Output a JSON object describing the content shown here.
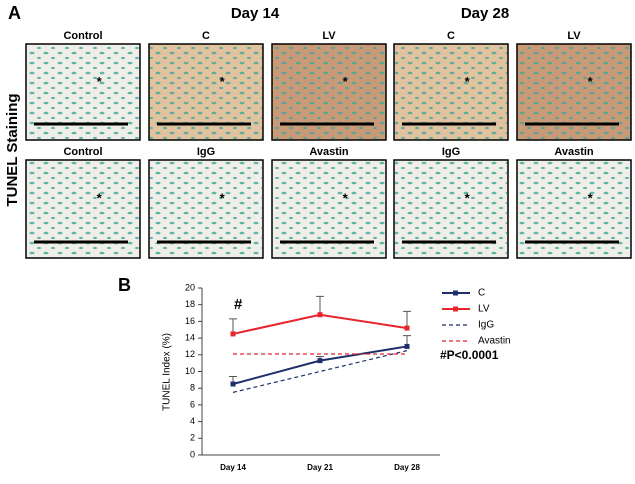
{
  "figure": {
    "panel_a_label": "A",
    "panel_b_label": "B",
    "row_label": "TUNEL Staining",
    "day_headers": [
      "Day 14",
      "Day 28"
    ],
    "panels": [
      {
        "label": "Control",
        "marker": "*"
      },
      {
        "label": "C",
        "marker": "*"
      },
      {
        "label": "LV",
        "marker": "*"
      },
      {
        "label": "C",
        "marker": "*"
      },
      {
        "label": "LV",
        "marker": "*"
      },
      {
        "label": "Control",
        "marker": "*"
      },
      {
        "label": "IgG",
        "marker": "*"
      },
      {
        "label": "Avastin",
        "marker": "*"
      },
      {
        "label": "IgG",
        "marker": "*"
      },
      {
        "label": "Avastin",
        "marker": "*"
      }
    ]
  },
  "chart_data": {
    "type": "line",
    "y_label": "TUNEL Index (%)",
    "categories": [
      "Day 14",
      "Day 21",
      "Day 28"
    ],
    "series": [
      {
        "name": "C",
        "color": "#1f2f6b",
        "dash": false,
        "markers": true,
        "values": [
          8.5,
          11.3,
          13.0
        ],
        "errors": [
          0.9,
          0.5,
          1.3
        ]
      },
      {
        "name": "LV",
        "color": "#e8242c",
        "dash": false,
        "markers": true,
        "values": [
          14.5,
          16.8,
          15.2
        ],
        "errors": [
          1.8,
          2.2,
          2.0
        ]
      },
      {
        "name": "IgG",
        "color": "#1f2f6b",
        "dash": true,
        "markers": false,
        "values": [
          7.5,
          10.0,
          12.5
        ]
      },
      {
        "name": "Avastin",
        "color": "#e8242c",
        "dash": true,
        "markers": false,
        "values": [
          12.1,
          12.1,
          12.1
        ]
      }
    ],
    "ylim": [
      0,
      20
    ],
    "yticks": [
      0,
      2,
      4,
      6,
      8,
      10,
      12,
      14,
      16,
      18,
      20
    ],
    "annotations": [
      "#",
      "#P<0.0001"
    ]
  }
}
